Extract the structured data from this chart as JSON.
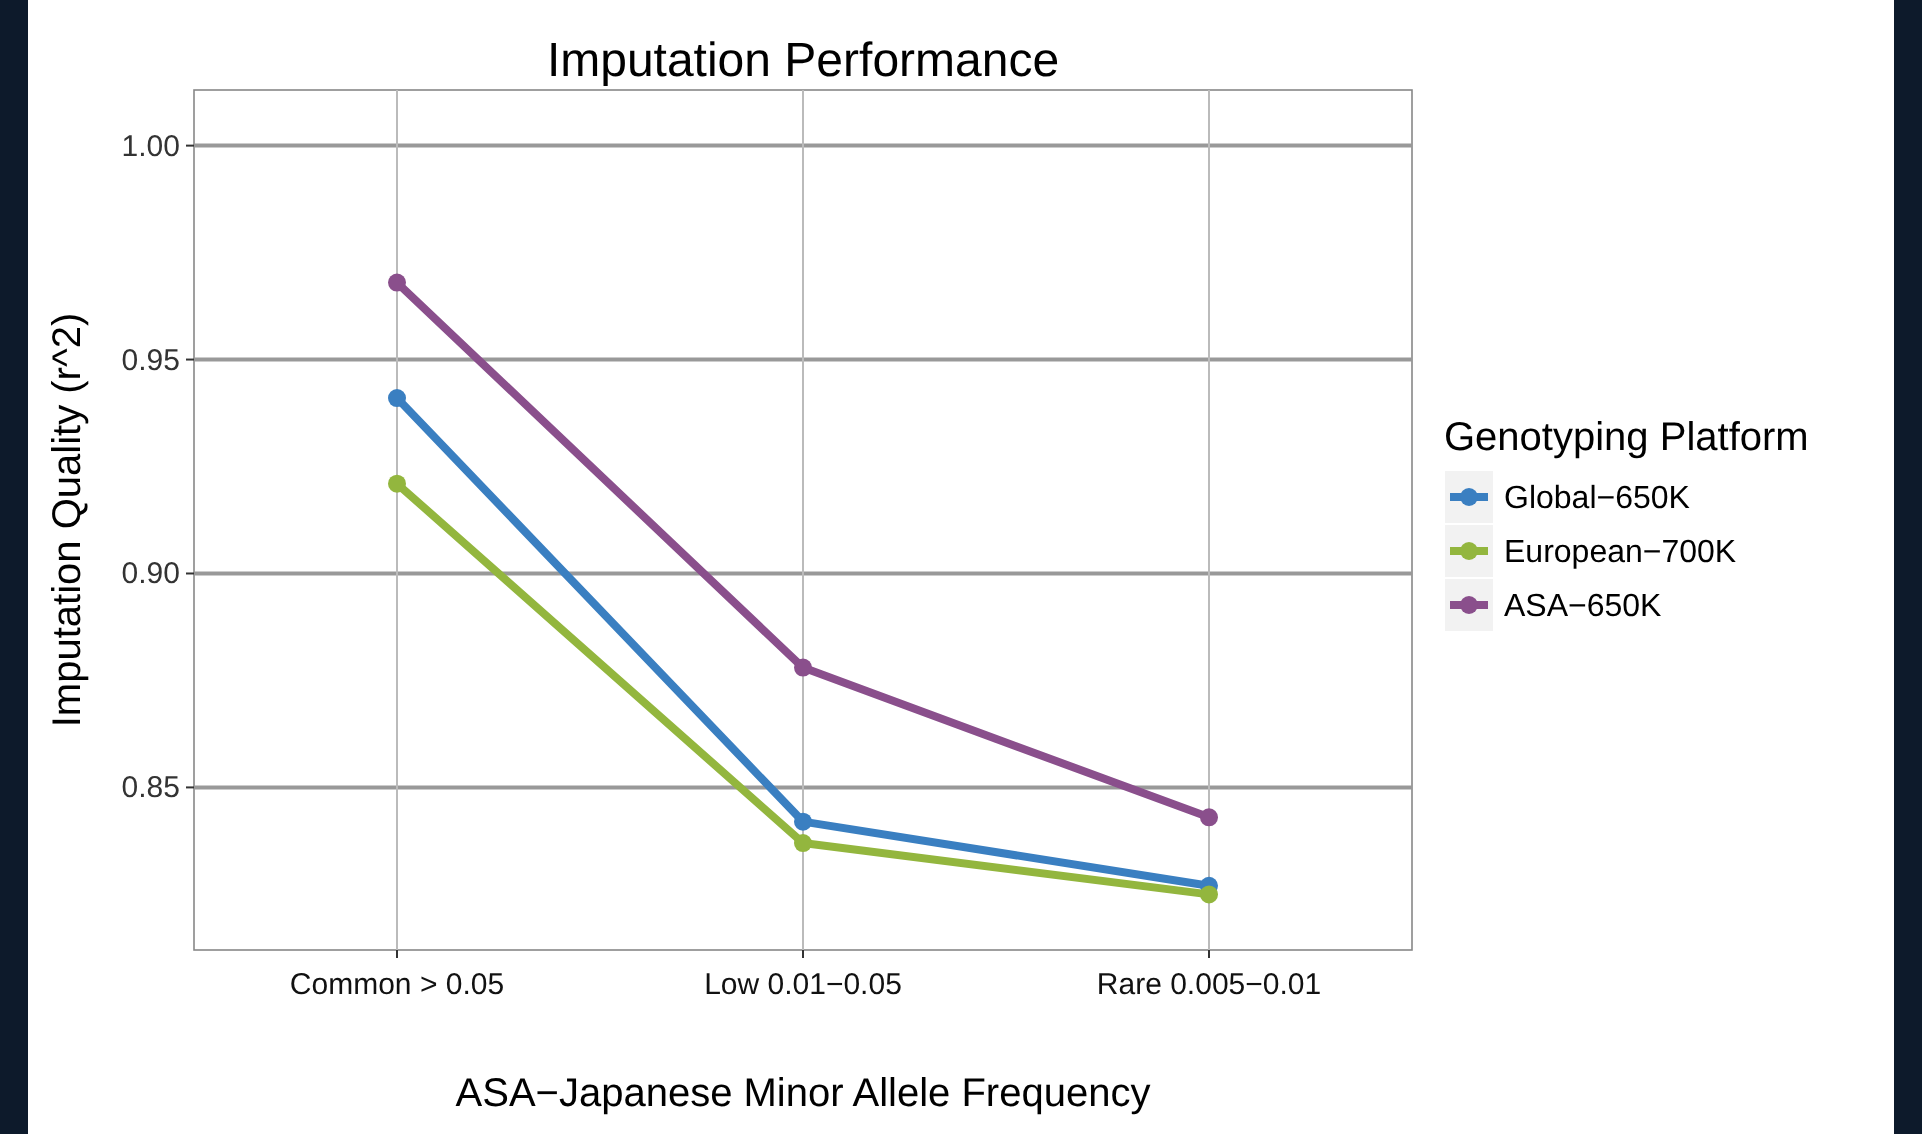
{
  "chart_data": {
    "type": "line",
    "title": "Imputation Performance",
    "xlabel": "ASA−Japanese Minor Allele Frequency",
    "ylabel": "Imputation Quality (r^2)",
    "legend_title": "Genotyping Platform",
    "categories": [
      "Common > 0.05",
      "Low 0.01−0.05",
      "Rare 0.005−0.01"
    ],
    "series": [
      {
        "name": "Global−650K",
        "color": "#3a7fc1",
        "values": [
          0.941,
          0.842,
          0.827
        ]
      },
      {
        "name": "European−700K",
        "color": "#93b63e",
        "values": [
          0.921,
          0.837,
          0.825
        ]
      },
      {
        "name": "ASA−650K",
        "color": "#8a4f8c",
        "values": [
          0.968,
          0.878,
          0.843
        ]
      }
    ],
    "ylim": [
      0.812,
      1.013
    ],
    "yticks": [
      {
        "value": 0.85,
        "label": "0.85"
      },
      {
        "value": 0.9,
        "label": "0.90"
      },
      {
        "value": 0.95,
        "label": "0.95"
      },
      {
        "value": 1,
        "label": "1.00"
      }
    ],
    "grid": true,
    "legend": "right",
    "marker": "circle",
    "line_style": "solid"
  }
}
